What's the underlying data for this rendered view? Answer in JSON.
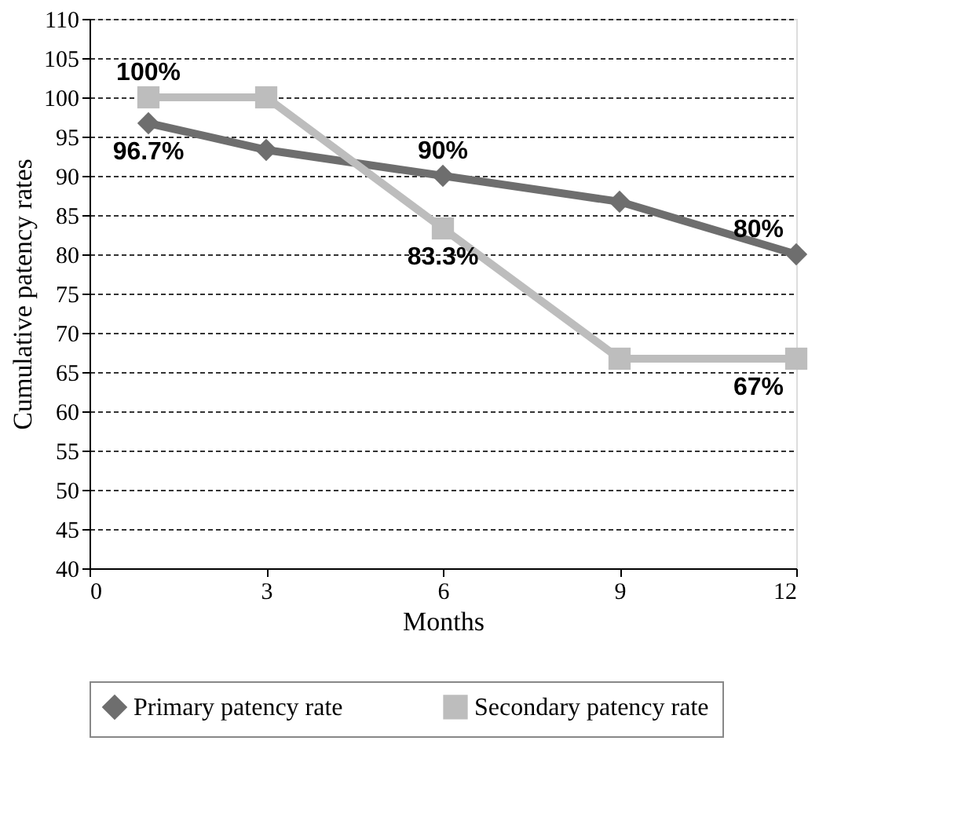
{
  "chart_data": {
    "type": "line",
    "xlabel": "Months",
    "ylabel": "Cumulative patency rates",
    "x": [
      1,
      3,
      6,
      9,
      12
    ],
    "series": [
      {
        "name": "Primary patency rate",
        "color": "#6e6e6e",
        "marker": "diamond",
        "values": [
          96.7,
          93.3,
          90,
          86.7,
          80
        ],
        "value_labels": [
          "96.7%",
          null,
          "90%",
          null,
          "80%"
        ]
      },
      {
        "name": "Secondary patency rate",
        "color": "#bdbdbd",
        "marker": "square",
        "values": [
          100,
          100,
          83.3,
          66.7,
          66.7
        ],
        "value_labels": [
          "100%",
          null,
          "83.3%",
          null,
          "67%"
        ]
      }
    ],
    "xlim": [
      0,
      12
    ],
    "xticks": [
      0,
      3,
      6,
      9,
      12
    ],
    "ylim": [
      40,
      110
    ],
    "yticks": [
      40,
      45,
      50,
      55,
      60,
      65,
      70,
      75,
      80,
      85,
      90,
      95,
      100,
      105,
      110
    ],
    "grid": "y",
    "legend": "bottom",
    "line_style": "solid"
  }
}
